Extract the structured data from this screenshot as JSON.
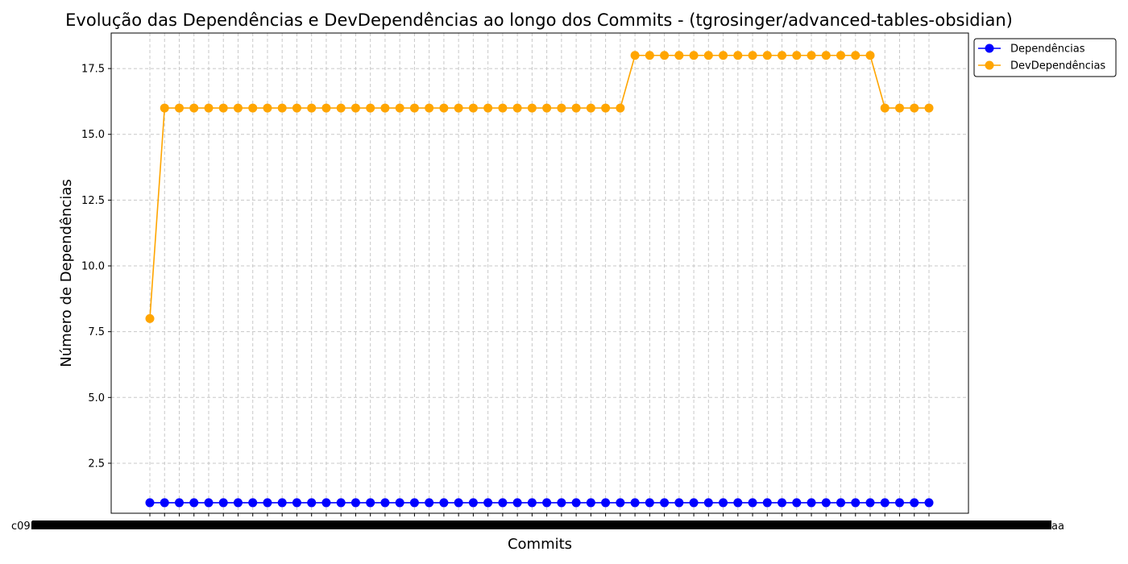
{
  "chart_data": {
    "type": "line",
    "title": "Evolução das Dependências e DevDependências ao longo dos Commits - (tgrosinger/advanced-tables-obsidian)",
    "xlabel": "Commits",
    "ylabel": "Número de Dependências",
    "ylim": [
      0.6,
      18.85
    ],
    "yticks": [
      2.5,
      5.0,
      7.5,
      10.0,
      12.5,
      15.0,
      17.5
    ],
    "ytick_labels": [
      "2.5",
      "5.0",
      "7.5",
      "10.0",
      "12.5",
      "15.0",
      "17.5"
    ],
    "grid": true,
    "legend_position": "upper right, outside plot",
    "x_first_label": "c09b7",
    "x_last_label": "aa",
    "series": [
      {
        "name": "Dependências",
        "color": "#0000ff",
        "values": [
          1,
          1,
          1,
          1,
          1,
          1,
          1,
          1,
          1,
          1,
          1,
          1,
          1,
          1,
          1,
          1,
          1,
          1,
          1,
          1,
          1,
          1,
          1,
          1,
          1,
          1,
          1,
          1,
          1,
          1,
          1,
          1,
          1,
          1,
          1,
          1,
          1,
          1,
          1,
          1,
          1,
          1,
          1,
          1,
          1,
          1,
          1,
          1,
          1,
          1,
          1,
          1,
          1,
          1
        ]
      },
      {
        "name": "DevDependências",
        "color": "#ffa500",
        "values": [
          8,
          16,
          16,
          16,
          16,
          16,
          16,
          16,
          16,
          16,
          16,
          16,
          16,
          16,
          16,
          16,
          16,
          16,
          16,
          16,
          16,
          16,
          16,
          16,
          16,
          16,
          16,
          16,
          16,
          16,
          16,
          16,
          16,
          18,
          18,
          18,
          18,
          18,
          18,
          18,
          18,
          18,
          18,
          18,
          18,
          18,
          18,
          18,
          18,
          18,
          16,
          16,
          16,
          16
        ]
      }
    ]
  }
}
